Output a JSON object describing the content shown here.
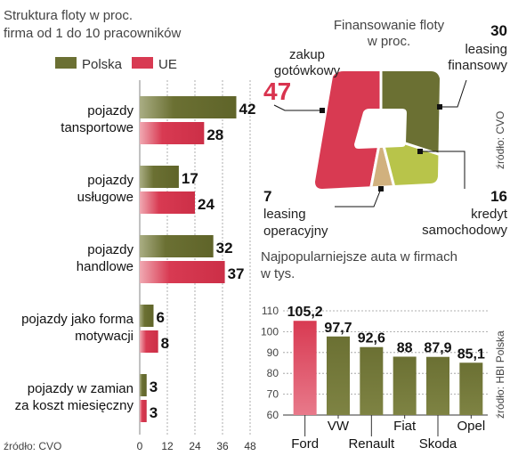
{
  "colors": {
    "polska": "#6b7033",
    "ue": "#d83a52",
    "accent": "#d83a52",
    "light_green": "#b8c44a",
    "tan": "#c9a77a"
  },
  "chart_data": [
    {
      "type": "bar",
      "orientation": "horizontal",
      "title_lines": [
        "Struktura floty w proc.",
        "firma od 1 do 10 pracowników"
      ],
      "legend": [
        "Polska",
        "UE"
      ],
      "categories": [
        [
          "pojazdy",
          "tansportowe"
        ],
        [
          "pojazdy",
          "usługowe"
        ],
        [
          "pojazdy",
          "handlowe"
        ],
        [
          "pojazdy jako forma",
          "motywacji"
        ],
        [
          "pojazdy w zamian",
          "za koszt miesięczny"
        ]
      ],
      "series": [
        {
          "name": "Polska",
          "values": [
            42,
            17,
            32,
            6,
            3
          ]
        },
        {
          "name": "UE",
          "values": [
            28,
            24,
            37,
            8,
            3
          ]
        }
      ],
      "xlim": [
        0,
        48
      ],
      "xticks": [
        "0",
        "12",
        "24",
        "36",
        "48"
      ],
      "source": "źródło: CVO"
    },
    {
      "type": "pie",
      "title_lines": [
        "Finansowanie floty",
        "w proc."
      ],
      "slices": [
        {
          "label_lines": [
            "zakup",
            "gotówkowy"
          ],
          "value": 47,
          "value_text": "47"
        },
        {
          "label_lines": [
            "leasing",
            "finansowy"
          ],
          "value": 30,
          "value_text": "30"
        },
        {
          "label_lines": [
            "kredyt",
            "samochodowy"
          ],
          "value": 16,
          "value_text": "16"
        },
        {
          "label_lines": [
            "leasing",
            "operacyjny"
          ],
          "value": 7,
          "value_text": "7"
        }
      ],
      "source": "źródło: CVO"
    },
    {
      "type": "bar",
      "title_lines": [
        "Najpopularniejsze auta w firmach",
        "w tys."
      ],
      "categories": [
        "Ford",
        "VW",
        "Renault",
        "Fiat",
        "Skoda",
        "Opel"
      ],
      "values": [
        105.2,
        97.7,
        92.6,
        88,
        87.9,
        85.1
      ],
      "value_labels": [
        "105,2",
        "97,7",
        "92,6",
        "88",
        "87,9",
        "85,1"
      ],
      "ylim": [
        60,
        110
      ],
      "yticks": [
        "60",
        "70",
        "80",
        "90",
        "100",
        "110"
      ],
      "source": "źródło: HBI Polska"
    }
  ]
}
